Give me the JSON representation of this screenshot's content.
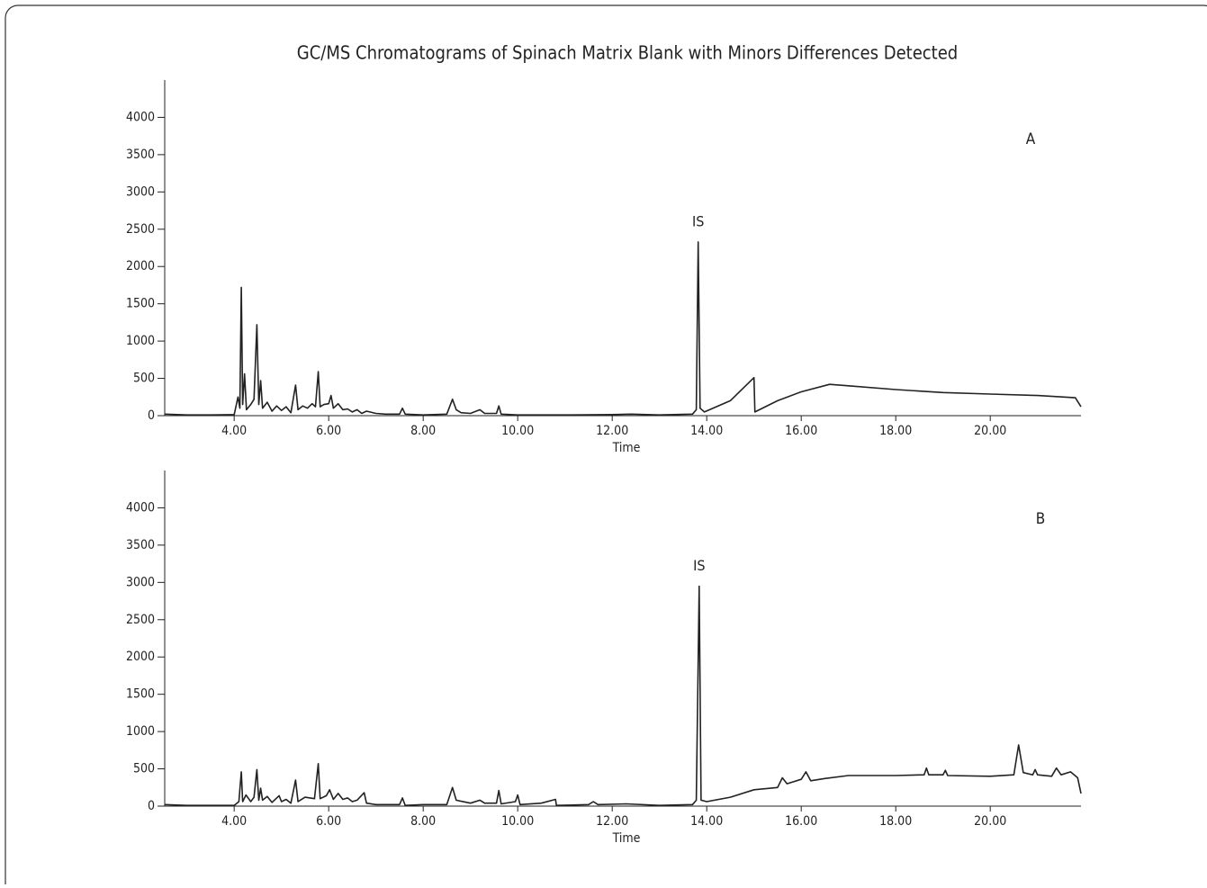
{
  "chart_data": [
    {
      "type": "line",
      "title": "GC/MS Chromatograms of Spinach Matrix Blank with Minors Differences Detected",
      "panel_label": "A",
      "annotation": "IS",
      "xlabel": "Time",
      "xlim": [
        2.53,
        21.92
      ],
      "xticks": [
        {
          "value": 4,
          "label": "4.00"
        },
        {
          "value": 6,
          "label": "6.00"
        },
        {
          "value": 8,
          "label": "8.00"
        },
        {
          "value": 10,
          "label": "10.00"
        },
        {
          "value": 12,
          "label": "12.00"
        },
        {
          "value": 14,
          "label": "14.00"
        },
        {
          "value": 16,
          "label": "16.00"
        },
        {
          "value": 18,
          "label": "18.00"
        },
        {
          "value": 20,
          "label": "20.00"
        }
      ],
      "ylim": [
        0,
        4500
      ],
      "yticks": [
        0,
        500,
        1000,
        1500,
        2000,
        2500,
        3000,
        3500,
        4000
      ],
      "color": "#222222",
      "x": [
        2.53,
        3.0,
        3.5,
        4.0,
        4.08,
        4.12,
        4.15,
        4.18,
        4.22,
        4.26,
        4.35,
        4.42,
        4.48,
        4.52,
        4.56,
        4.6,
        4.7,
        4.8,
        4.9,
        5.0,
        5.1,
        5.2,
        5.3,
        5.35,
        5.45,
        5.55,
        5.65,
        5.72,
        5.78,
        5.82,
        5.9,
        6.0,
        6.05,
        6.1,
        6.2,
        6.3,
        6.4,
        6.5,
        6.6,
        6.7,
        6.8,
        7.0,
        7.2,
        7.5,
        7.56,
        7.62,
        8.0,
        8.5,
        8.62,
        8.7,
        8.8,
        9.0,
        9.2,
        9.3,
        9.55,
        9.6,
        9.65,
        10.0,
        11.0,
        12.0,
        12.4,
        13.0,
        13.7,
        13.78,
        13.82,
        13.86,
        13.95,
        14.5,
        15.0,
        15.02,
        15.5,
        16.0,
        16.6,
        17.0,
        18.0,
        19.0,
        20.0,
        21.0,
        21.8,
        21.92
      ],
      "values": [
        20,
        10,
        10,
        15,
        250,
        100,
        1720,
        150,
        560,
        80,
        150,
        220,
        1220,
        150,
        470,
        100,
        180,
        60,
        130,
        70,
        120,
        40,
        410,
        80,
        130,
        100,
        160,
        120,
        590,
        120,
        150,
        160,
        270,
        100,
        160,
        80,
        90,
        50,
        80,
        30,
        60,
        30,
        20,
        20,
        100,
        20,
        10,
        20,
        220,
        80,
        40,
        30,
        80,
        30,
        30,
        130,
        20,
        10,
        10,
        15,
        20,
        10,
        20,
        80,
        2330,
        100,
        50,
        200,
        510,
        50,
        200,
        320,
        420,
        400,
        350,
        310,
        290,
        270,
        240,
        120
      ]
    },
    {
      "type": "line",
      "panel_label": "B",
      "annotation": "IS",
      "xlabel": "Time",
      "xlim": [
        2.53,
        21.92
      ],
      "xticks": [
        {
          "value": 4,
          "label": "4.00"
        },
        {
          "value": 6,
          "label": "6.00"
        },
        {
          "value": 8,
          "label": "8.00"
        },
        {
          "value": 10,
          "label": "10.00"
        },
        {
          "value": 12,
          "label": "12.00"
        },
        {
          "value": 14,
          "label": "14.00"
        },
        {
          "value": 16,
          "label": "16.00"
        },
        {
          "value": 18,
          "label": "18.00"
        },
        {
          "value": 20,
          "label": "20.00"
        }
      ],
      "ylim": [
        0,
        4500
      ],
      "yticks": [
        0,
        500,
        1000,
        1500,
        2000,
        2500,
        3000,
        3500,
        4000
      ],
      "color": "#222222",
      "x": [
        2.53,
        3.0,
        4.0,
        4.1,
        4.15,
        4.18,
        4.25,
        4.35,
        4.42,
        4.48,
        4.52,
        4.56,
        4.6,
        4.7,
        4.8,
        4.95,
        5.0,
        5.1,
        5.2,
        5.3,
        5.35,
        5.5,
        5.7,
        5.78,
        5.82,
        5.95,
        6.02,
        6.1,
        6.2,
        6.3,
        6.4,
        6.5,
        6.6,
        6.75,
        6.8,
        7.0,
        7.5,
        7.56,
        7.62,
        8.0,
        8.5,
        8.62,
        8.7,
        9.0,
        9.2,
        9.3,
        9.55,
        9.6,
        9.65,
        9.95,
        10.0,
        10.05,
        10.5,
        10.8,
        10.82,
        11.5,
        11.6,
        11.7,
        12.3,
        13.0,
        13.7,
        13.78,
        13.84,
        13.88,
        14.0,
        14.5,
        15.0,
        15.5,
        15.6,
        15.7,
        16.0,
        16.1,
        16.2,
        16.5,
        17.0,
        18.0,
        18.6,
        18.65,
        18.7,
        19.0,
        19.05,
        19.1,
        20.0,
        20.5,
        20.6,
        20.7,
        20.9,
        20.95,
        21.0,
        21.3,
        21.4,
        21.5,
        21.7,
        21.85,
        21.92
      ],
      "values": [
        20,
        10,
        10,
        60,
        460,
        60,
        150,
        60,
        120,
        490,
        80,
        240,
        80,
        130,
        50,
        140,
        60,
        90,
        40,
        350,
        60,
        120,
        100,
        570,
        100,
        140,
        220,
        90,
        170,
        90,
        110,
        60,
        80,
        180,
        40,
        20,
        20,
        110,
        10,
        20,
        20,
        250,
        80,
        40,
        80,
        40,
        40,
        210,
        30,
        60,
        150,
        20,
        40,
        90,
        10,
        20,
        60,
        20,
        30,
        10,
        20,
        80,
        2950,
        80,
        60,
        120,
        220,
        250,
        380,
        300,
        360,
        460,
        340,
        370,
        410,
        410,
        420,
        510,
        420,
        420,
        480,
        410,
        400,
        420,
        820,
        450,
        420,
        490,
        420,
        400,
        510,
        420,
        460,
        380,
        170
      ]
    }
  ]
}
